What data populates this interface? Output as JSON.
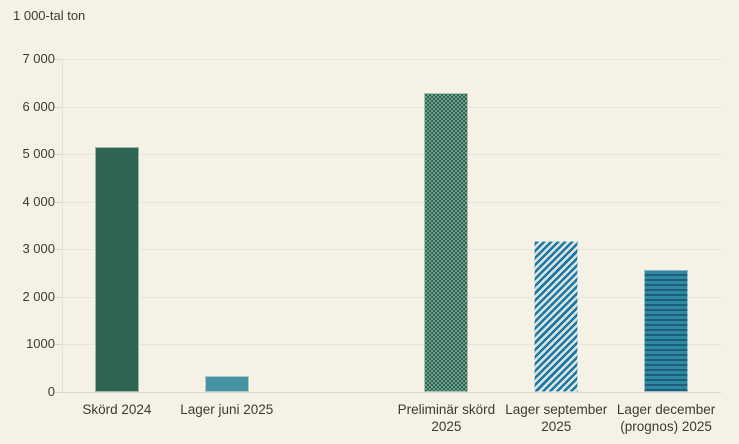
{
  "page": {
    "background": "#f5f2e5",
    "text_color": "#3b3a34",
    "gridline_color": "#e6e5dd",
    "zero_line_color": "#d9d8cf"
  },
  "chart_data": {
    "type": "bar",
    "title": "",
    "ylabel": "1 000-tal ton",
    "xlabel": "",
    "ylim": [
      0,
      7000
    ],
    "ytick_interval": 1000,
    "ytick_labels": [
      "0",
      "1000",
      "2 000",
      "3 000",
      "4 000",
      "5 000",
      "6 000",
      "7 000"
    ],
    "grid": true,
    "legend": "none",
    "categories": [
      "Skörd 2024",
      "Lager juni 2025",
      "Preliminär skörd 2025",
      "Lager september 2025",
      "Lager december (prognos) 2025"
    ],
    "values": [
      5150,
      340,
      6290,
      3180,
      2570
    ],
    "bars": [
      {
        "label": "Skörd 2024",
        "value": 5150,
        "slot": 0,
        "fill": "solid",
        "color": "#2d6452",
        "color2": ""
      },
      {
        "label": "Lager juni 2025",
        "value": 340,
        "slot": 1,
        "fill": "solid",
        "color": "#4793a4",
        "color2": ""
      },
      {
        "label": "Preliminär skörd 2025",
        "value": 6290,
        "slot": 3,
        "fill": "checker",
        "color": "#2d6452",
        "color2": "#6f9e8c"
      },
      {
        "label": "Lager september 2025",
        "value": 3180,
        "slot": 4,
        "fill": "diagonal",
        "color": "#2077a4",
        "color2": "#d9e6e0"
      },
      {
        "label": "Lager december (prognos) 2025",
        "value": 2570,
        "slot": 5,
        "fill": "horizontal",
        "color": "#2e8aa2",
        "color2": "#1e5e7c"
      }
    ],
    "slots": 6
  }
}
